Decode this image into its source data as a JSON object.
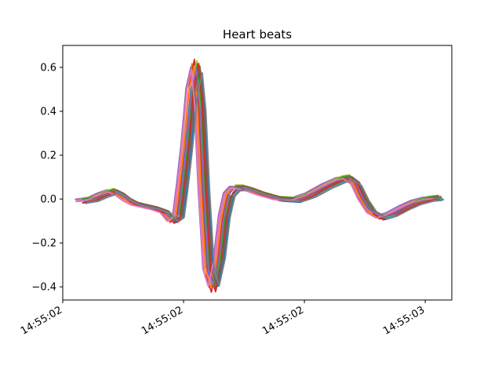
{
  "chart_data": {
    "type": "line",
    "title": "Heart beats",
    "xlabel": "",
    "ylabel": "",
    "x_tick_labels": [
      "14:55:02",
      "14:55:02",
      "14:55:02",
      "14:55:03"
    ],
    "y_tick_labels": [
      "−0.4",
      "−0.2",
      "0.0",
      "0.2",
      "0.4",
      "0.6"
    ],
    "x_ticks": [
      0,
      1,
      2,
      3
    ],
    "y_ticks": [
      -0.4,
      -0.2,
      0.0,
      0.2,
      0.4,
      0.6
    ],
    "xlim": [
      0,
      3.22
    ],
    "ylim": [
      -0.46,
      0.7
    ],
    "grid": false,
    "legend": "none",
    "beat_template": {
      "x": [
        0.14,
        0.25,
        0.33,
        0.41,
        0.47,
        0.53,
        0.6,
        0.68,
        0.76,
        0.84,
        0.9,
        0.95,
        0.98,
        1.02,
        1.06,
        1.1,
        1.13,
        1.16,
        1.2,
        1.24,
        1.29,
        1.33,
        1.37,
        1.42,
        1.48,
        1.55,
        1.65,
        1.78,
        1.92,
        2.05,
        2.18,
        2.3,
        2.36,
        2.42,
        2.48,
        2.55,
        2.63,
        2.72,
        2.82,
        2.92,
        3.02,
        3.1
      ],
      "y": [
        -0.01,
        0.0,
        0.02,
        0.035,
        0.02,
        -0.005,
        -0.025,
        -0.035,
        -0.045,
        -0.06,
        -0.1,
        -0.08,
        0.05,
        0.25,
        0.5,
        0.6,
        0.42,
        0.05,
        -0.33,
        -0.4,
        -0.27,
        -0.08,
        0.02,
        0.05,
        0.05,
        0.04,
        0.02,
        0.0,
        -0.005,
        0.02,
        0.06,
        0.09,
        0.095,
        0.07,
        0.0,
        -0.06,
        -0.085,
        -0.07,
        -0.04,
        -0.015,
        0.0,
        0.005
      ]
    },
    "series": [
      {
        "color": "#1f77b4",
        "x_shift": 0.0,
        "y_scale": 1.0,
        "y_offset": 0.0
      },
      {
        "color": "#ff7f0e",
        "x_shift": -0.03,
        "y_scale": 1.02,
        "y_offset": 0.005
      },
      {
        "color": "#2ca02c",
        "x_shift": 0.03,
        "y_scale": 0.97,
        "y_offset": -0.005
      },
      {
        "color": "#d62728",
        "x_shift": -0.01,
        "y_scale": 1.06,
        "y_offset": 0.0
      },
      {
        "color": "#9467bd",
        "x_shift": -0.04,
        "y_scale": 0.99,
        "y_offset": 0.008
      },
      {
        "color": "#8c564b",
        "x_shift": 0.02,
        "y_scale": 1.01,
        "y_offset": -0.008
      },
      {
        "color": "#e377c2",
        "x_shift": -0.02,
        "y_scale": 0.96,
        "y_offset": 0.004
      },
      {
        "color": "#7f7f7f",
        "x_shift": 0.04,
        "y_scale": 0.98,
        "y_offset": 0.0
      },
      {
        "color": "#bcbd22",
        "x_shift": 0.01,
        "y_scale": 1.03,
        "y_offset": 0.012
      },
      {
        "color": "#17becf",
        "x_shift": 0.05,
        "y_scale": 0.95,
        "y_offset": -0.004
      },
      {
        "color": "#1f77b4",
        "x_shift": 0.045,
        "y_scale": 0.97,
        "y_offset": -0.01
      },
      {
        "color": "#ff7f0e",
        "x_shift": -0.015,
        "y_scale": 1.0,
        "y_offset": 0.0
      },
      {
        "color": "#2ca02c",
        "x_shift": 0.015,
        "y_scale": 1.01,
        "y_offset": 0.01
      },
      {
        "color": "#d62728",
        "x_shift": 0.025,
        "y_scale": 1.04,
        "y_offset": -0.006
      },
      {
        "color": "#9467bd",
        "x_shift": 0.005,
        "y_scale": 0.98,
        "y_offset": 0.003
      },
      {
        "color": "#8c564b",
        "x_shift": 0.035,
        "y_scale": 1.0,
        "y_offset": 0.006
      },
      {
        "color": "#e377c2",
        "x_shift": -0.035,
        "y_scale": 0.99,
        "y_offset": -0.002
      },
      {
        "color": "#7f7f7f",
        "x_shift": 0.055,
        "y_scale": 0.97,
        "y_offset": -0.007
      }
    ]
  }
}
